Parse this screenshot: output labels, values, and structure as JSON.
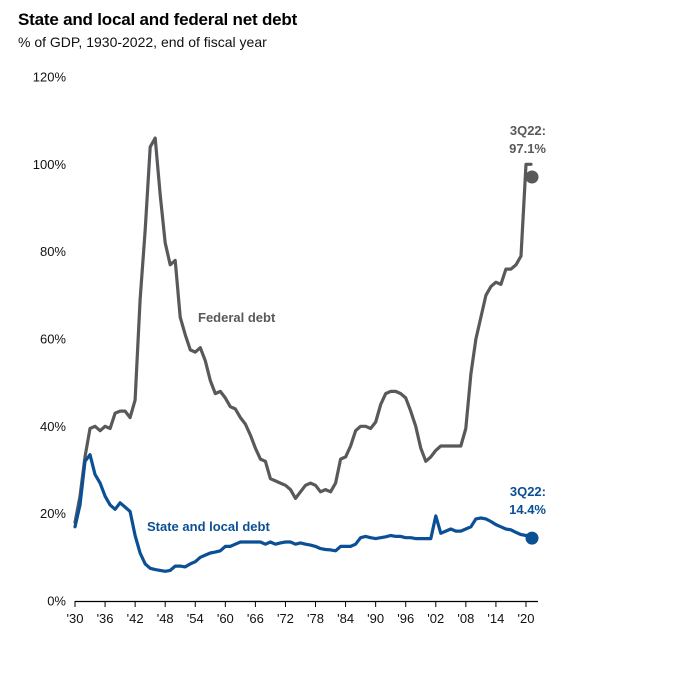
{
  "title": "State and local and federal net debt",
  "subtitle": "% of GDP, 1930-2022, end of fiscal year",
  "colors": {
    "federal": "#58595b",
    "state_local": "#0b4f95",
    "axis": "#000000"
  },
  "chart_data": {
    "type": "line",
    "ylim": [
      0,
      120
    ],
    "xlim": [
      1930,
      2022
    ],
    "y_ticks": [
      0,
      20,
      40,
      60,
      80,
      100,
      120
    ],
    "y_tick_labels": [
      "0%",
      "20%",
      "40%",
      "60%",
      "80%",
      "100%",
      "120%"
    ],
    "x_ticks": [
      1930,
      1936,
      1942,
      1948,
      1954,
      1960,
      1966,
      1972,
      1978,
      1984,
      1990,
      1996,
      2002,
      2008,
      2014,
      2020
    ],
    "x_tick_labels": [
      "'30",
      "'36",
      "'42",
      "'48",
      "'54",
      "'60",
      "'66",
      "'72",
      "'78",
      "'84",
      "'90",
      "'96",
      "'02",
      "'08",
      "'14",
      "'20"
    ],
    "series": [
      {
        "name": "Federal debt",
        "color": "#58595b",
        "x": [
          1930,
          1931,
          1932,
          1933,
          1934,
          1935,
          1936,
          1937,
          1938,
          1939,
          1940,
          1941,
          1942,
          1943,
          1944,
          1945,
          1946,
          1947,
          1948,
          1949,
          1950,
          1951,
          1952,
          1953,
          1954,
          1955,
          1956,
          1957,
          1958,
          1959,
          1960,
          1961,
          1962,
          1963,
          1964,
          1965,
          1966,
          1967,
          1968,
          1969,
          1970,
          1971,
          1972,
          1973,
          1974,
          1975,
          1976,
          1977,
          1978,
          1979,
          1980,
          1981,
          1982,
          1983,
          1984,
          1985,
          1986,
          1987,
          1988,
          1989,
          1990,
          1991,
          1992,
          1993,
          1994,
          1995,
          1996,
          1997,
          1998,
          1999,
          2000,
          2001,
          2002,
          2003,
          2004,
          2005,
          2006,
          2007,
          2008,
          2009,
          2010,
          2011,
          2012,
          2013,
          2014,
          2015,
          2016,
          2017,
          2018,
          2019,
          2020,
          2021
        ],
        "y": [
          18,
          24,
          33,
          39.5,
          40,
          39,
          40,
          39.5,
          43,
          43.5,
          43.5,
          42,
          46,
          69,
          85,
          104,
          106,
          93,
          82,
          77,
          78,
          65,
          61,
          57.5,
          57,
          58,
          55,
          50.5,
          47.5,
          48,
          46.5,
          44.5,
          44,
          42,
          40.5,
          38,
          35,
          32.5,
          32,
          28,
          27.5,
          27,
          26.5,
          25.5,
          23.5,
          25,
          26.5,
          27,
          26.5,
          25,
          25.5,
          25,
          27,
          32.5,
          33,
          35.5,
          39,
          40,
          40,
          39.5,
          41,
          45,
          47.5,
          48,
          48,
          47.5,
          46.5,
          43.5,
          40,
          35,
          32,
          33,
          34.5,
          35.5,
          35.5,
          35.5,
          35.5,
          35.5,
          39.5,
          52,
          60,
          65,
          70,
          72,
          73,
          72.5,
          76,
          76,
          77,
          79,
          100,
          100
        ]
      },
      {
        "name": "State and local debt",
        "color": "#0b4f95",
        "x": [
          1930,
          1931,
          1932,
          1933,
          1934,
          1935,
          1936,
          1937,
          1938,
          1939,
          1940,
          1941,
          1942,
          1943,
          1944,
          1945,
          1946,
          1947,
          1948,
          1949,
          1950,
          1951,
          1952,
          1953,
          1954,
          1955,
          1956,
          1957,
          1958,
          1959,
          1960,
          1961,
          1962,
          1963,
          1964,
          1965,
          1966,
          1967,
          1968,
          1969,
          1970,
          1971,
          1972,
          1973,
          1974,
          1975,
          1976,
          1977,
          1978,
          1979,
          1980,
          1981,
          1982,
          1983,
          1984,
          1985,
          1986,
          1987,
          1988,
          1989,
          1990,
          1991,
          1992,
          1993,
          1994,
          1995,
          1996,
          1997,
          1998,
          1999,
          2000,
          2001,
          2002,
          2003,
          2004,
          2005,
          2006,
          2007,
          2008,
          2009,
          2010,
          2011,
          2012,
          2013,
          2014,
          2015,
          2016,
          2017,
          2018,
          2019,
          2020,
          2021
        ],
        "y": [
          17,
          22,
          32,
          33.5,
          29,
          27,
          24,
          22,
          21,
          22.5,
          21.5,
          20.5,
          15,
          11,
          8.5,
          7.5,
          7.2,
          7,
          6.8,
          7,
          8,
          8,
          7.8,
          8.5,
          9,
          10,
          10.5,
          11,
          11.2,
          11.5,
          12.5,
          12.5,
          13,
          13.5,
          13.5,
          13.5,
          13.5,
          13.5,
          13,
          13.5,
          13,
          13.3,
          13.5,
          13.5,
          13,
          13.3,
          13,
          12.8,
          12.5,
          12,
          11.8,
          11.7,
          11.5,
          12.5,
          12.5,
          12.5,
          13,
          14.5,
          14.8,
          14.5,
          14.3,
          14.5,
          14.7,
          15,
          14.8,
          14.8,
          14.5,
          14.5,
          14.3,
          14.3,
          14.3,
          14.3,
          19.5,
          15.5,
          16,
          16.5,
          16,
          16,
          16.5,
          17,
          18.8,
          19,
          18.8,
          18.2,
          17.5,
          17,
          16.5,
          16.3,
          15.7,
          15.2,
          15,
          15
        ]
      }
    ],
    "endpoints": [
      {
        "series": "Federal debt",
        "x": 2022,
        "y": 97.1,
        "label_line1": "3Q22:",
        "label_line2": "97.1%"
      },
      {
        "series": "State and local debt",
        "x": 2022,
        "y": 14.4,
        "label_line1": "3Q22:",
        "label_line2": "14.4%"
      }
    ],
    "series_labels": [
      "Federal debt",
      "State and local debt"
    ]
  }
}
